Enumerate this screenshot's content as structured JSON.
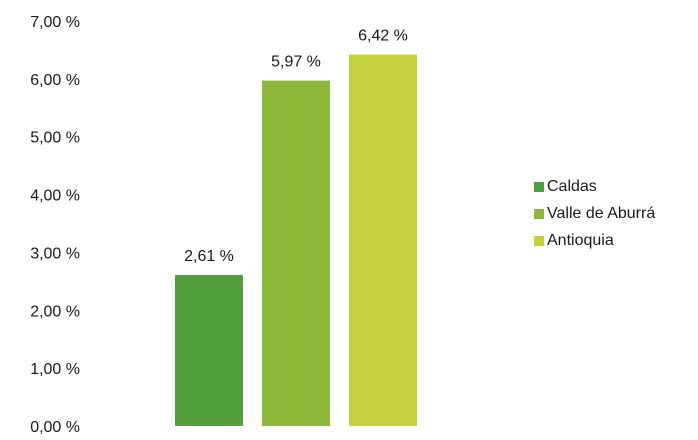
{
  "chart_data": {
    "type": "bar",
    "categories": [
      "Caldas",
      "Valle de Aburrá",
      "Antioquia"
    ],
    "values": [
      2.61,
      5.97,
      6.42
    ],
    "value_labels": [
      "2,61 %",
      "5,97 %",
      "6,42 %"
    ],
    "colors": [
      "#529e3a",
      "#8cb93a",
      "#c3d23c"
    ],
    "ylim": [
      0,
      7
    ],
    "yticks": [
      0,
      1,
      2,
      3,
      4,
      5,
      6,
      7
    ],
    "ytick_labels": [
      "0,00 %",
      "1,00 %",
      "2,00 %",
      "3,00 %",
      "4,00 %",
      "5,00 %",
      "6,00 %",
      "7,00 %"
    ],
    "grid": false,
    "legend": {
      "position": "right",
      "items": [
        "Caldas",
        "Valle de Aburrá",
        "Antioquia"
      ]
    }
  }
}
